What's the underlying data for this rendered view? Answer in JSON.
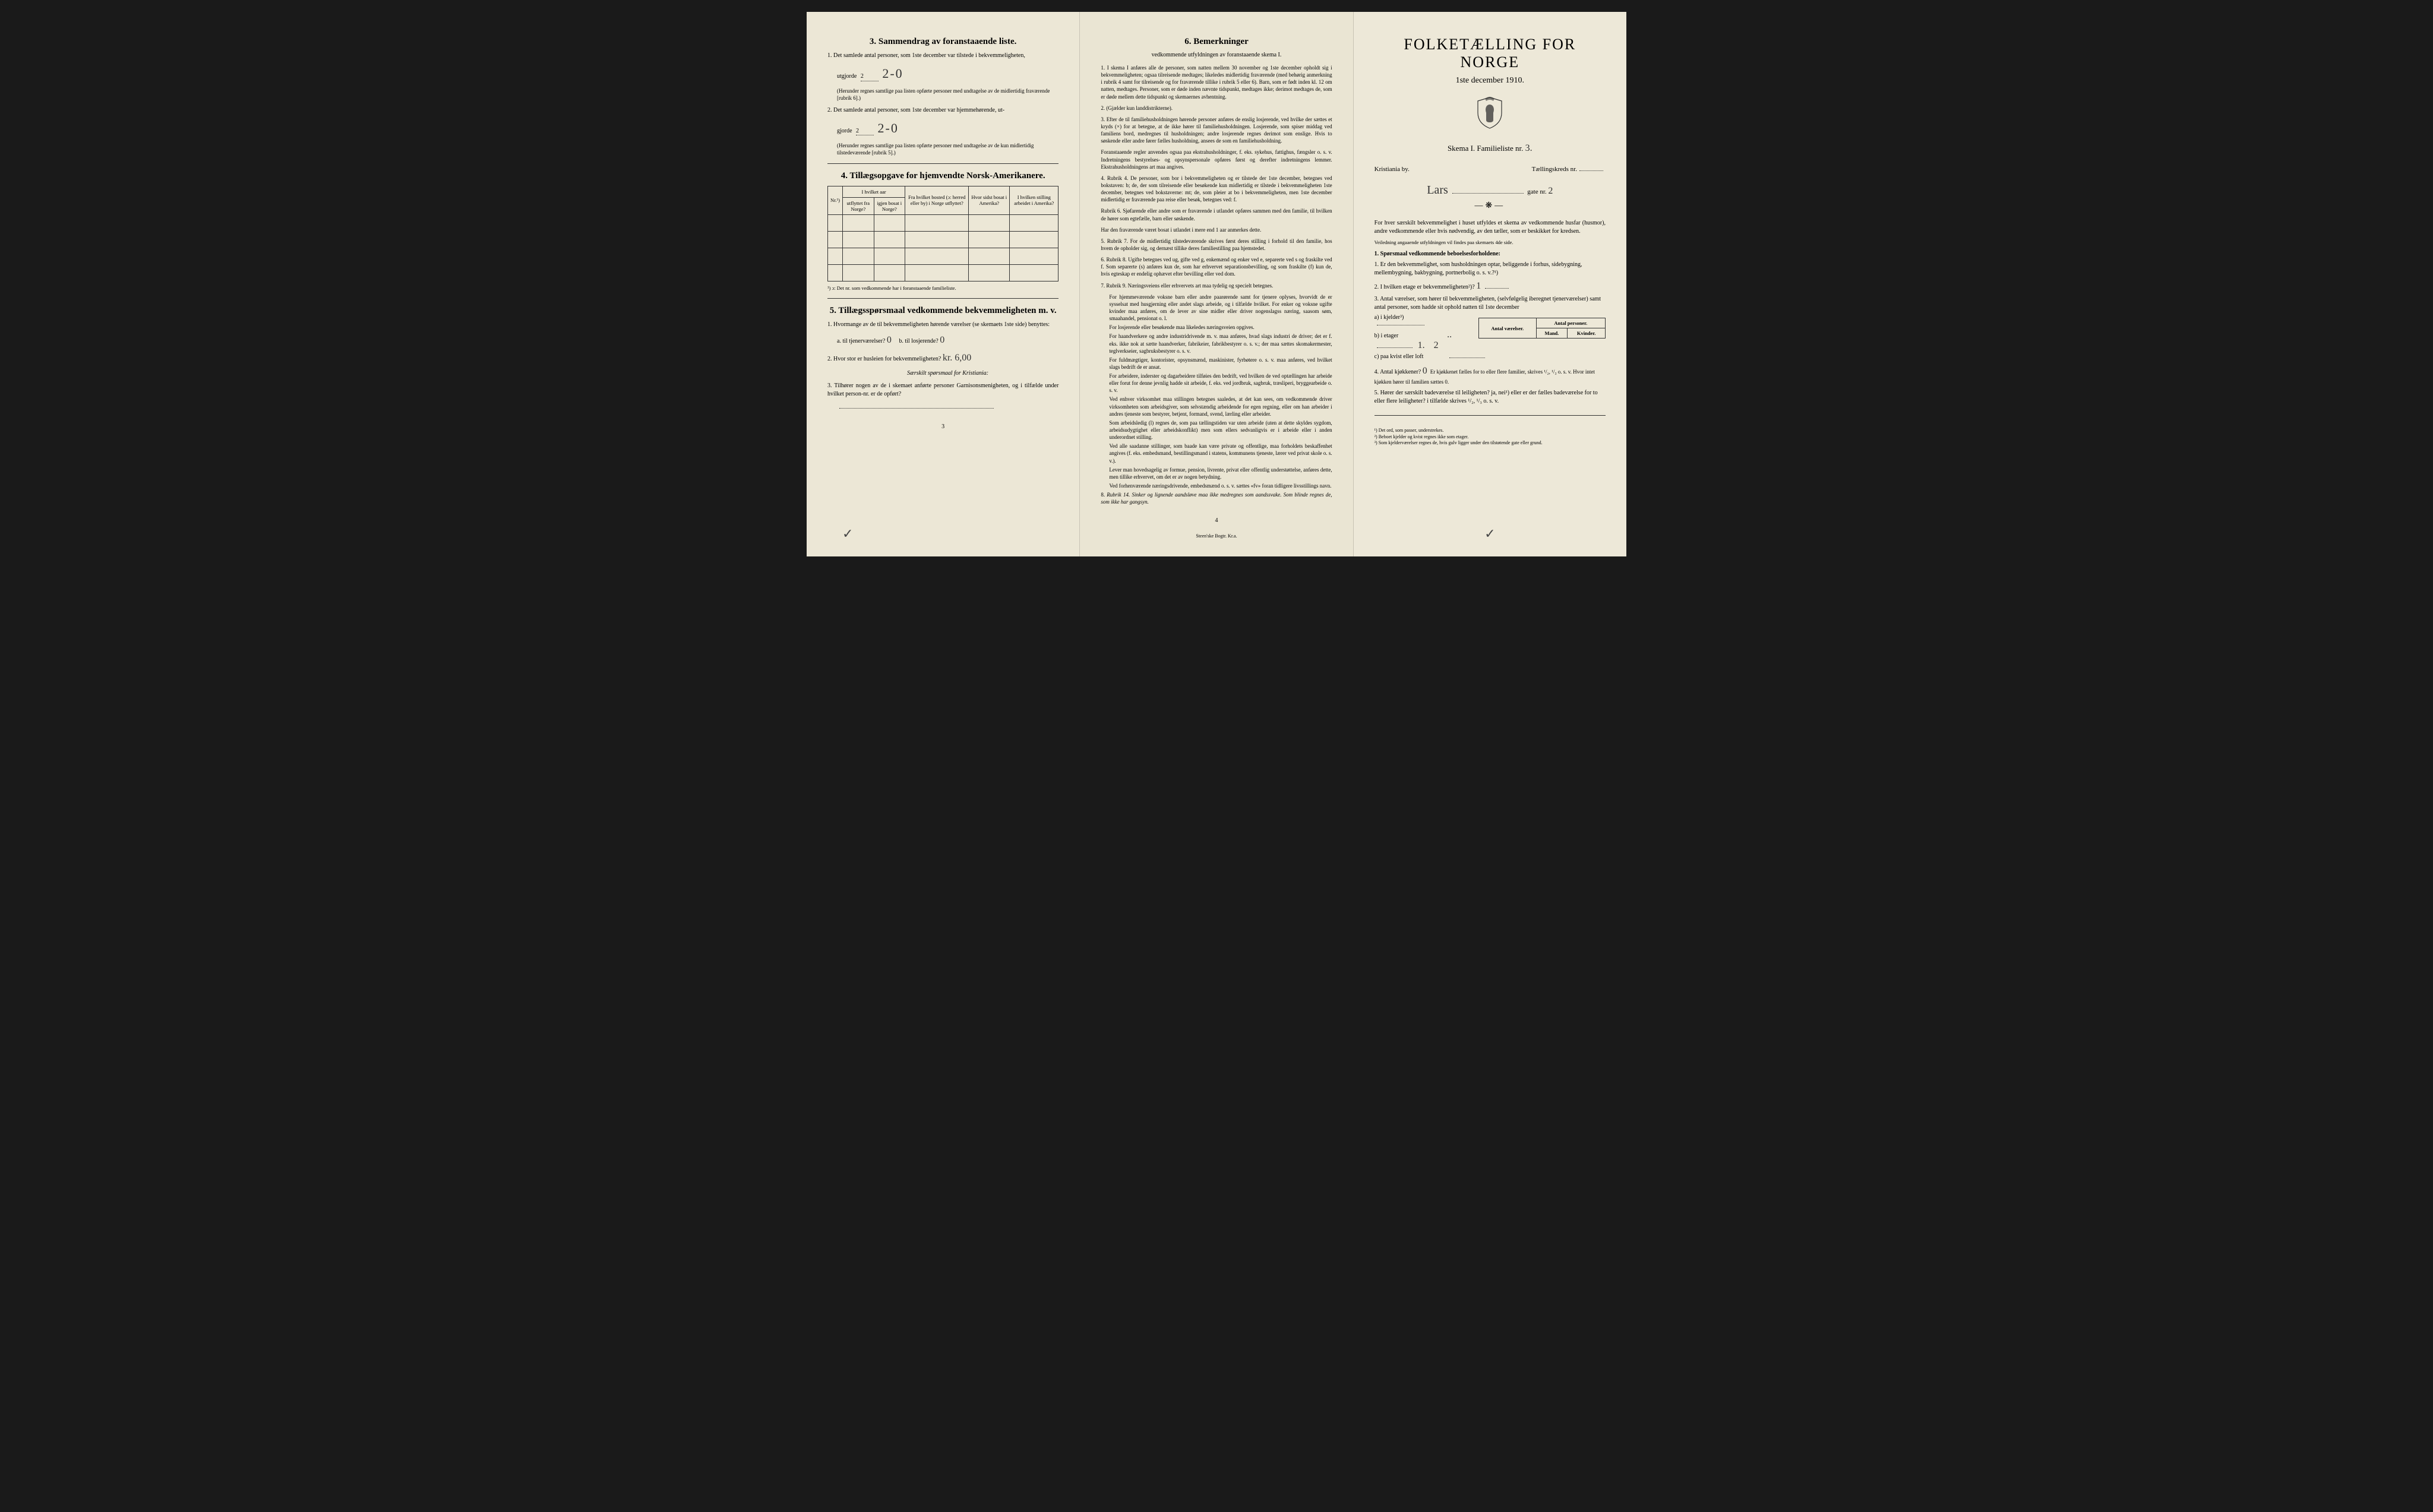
{
  "left": {
    "section3": {
      "title": "3.  Sammendrag av foranstaaende liste.",
      "item1": "1. Det samlede antal personer, som 1ste december var tilstede i bekvemmeligheten,",
      "item1_line": "utgjorde",
      "item1_val_print": "2",
      "item1_val_hand": "2-0",
      "item1_note": "(Herunder regnes samtlige paa listen opførte personer med undtagelse av de midlertidig fraværende [rubrik 6].)",
      "item2": "2. Det samlede antal personer, som 1ste december var hjemmehørende, ut-",
      "item2_line": "gjorde",
      "item2_val_print": "2",
      "item2_val_hand": "2-0",
      "item2_note": "(Herunder regnes samtlige paa listen opførte personer med undtagelse av de kun midlertidig tilstedeværende [rubrik 5].)"
    },
    "section4": {
      "title": "4.  Tillægsopgave for hjemvendte Norsk-Amerikanere.",
      "table": {
        "headers": {
          "col1": "Nr.¹)",
          "col2_group": "I hvilket aar",
          "col2a": "utflyttet fra Norge?",
          "col2b": "igjen bosat i Norge?",
          "col3": "Fra hvilket bosted (ɔ: herred eller by) i Norge utflyttet?",
          "col4": "Hvor sidst bosat i Amerika?",
          "col5": "I hvilken stilling arbeidet i Amerika?"
        }
      },
      "footnote": "¹) ɔ: Det nr. som vedkommende har i foranstaaende familieliste."
    },
    "section5": {
      "title": "5.  Tillægsspørsmaal vedkommende bekvemmeligheten m. v.",
      "item1": "1. Hvormange av de til bekvemmeligheten hørende værelser (se skemaets 1ste side) benyttes:",
      "item1a_label": "a. til tjenerværelser?",
      "item1a_val": "0",
      "item1b_label": "b. til losjerende?",
      "item1b_val": "0",
      "item2": "2. Hvor stor er husleien for bekvemmeligheten?",
      "item2_val": "kr. 6,00",
      "item2_sub": "Særskilt spørsmaal for Kristiania:",
      "item3": "3. Tilhører nogen av de i skemaet anførte personer Garnisonsmenigheten, og i tilfælde under hvilket person-nr. er de opført?"
    },
    "page_num": "3"
  },
  "middle": {
    "title": "6.  Bemerkninger",
    "subtitle": "vedkommende utfyldningen av foranstaaende skema I.",
    "items": [
      {
        "n": "1.",
        "t": "I skema I anføres alle de personer, som natten mellem 30 november og 1ste december opholdt sig i bekvemmeligheten; ogsaa tilreisende medtages; likeledes midlertidig fraværende (med behørig anmerkning i rubrik 4 samt for tilreisende og for fraværende tillike i rubrik 5 eller 6). Barn, som er født inden kl. 12 om natten, medtages. Personer, som er døde inden nævnte tidspunkt, medtages ikke; derimot medtages de, som er døde mellem dette tidspunkt og skemaernes avhentning."
      },
      {
        "n": "2.",
        "t": "(Gjælder kun landdistrikterne)."
      },
      {
        "n": "3.",
        "t": "Efter de til familiehusholdningen hørende personer anføres de enslig losjerende, ved hvilke der sættes et kryds (×) for at betegne, at de ikke hører til familiehusholdningen. Losjerende, som spiser middag ved familiens bord, medregnes til husholdningen; andre losjerende regnes derimot som enslige. Hvis to søskende eller andre fører fælles husholdning, ansees de som en familiehusholdning."
      },
      {
        "n": "",
        "t": "Foranstaaende regler anvendes ogsaa paa ekstrahusholdninger, f. eks. sykehus, fattighus, fængsler o. s. v. Indretningens bestyrelses- og opsynspersonale opføres først og derefter indretningens lemmer. Ekstrahusholdningens art maa angives."
      },
      {
        "n": "4.",
        "t": "Rubrik 4. De personer, som bor i bekvemmeligheten og er tilstede der 1ste december, betegnes ved bokstaven: b; de, der som tilreisende eller besøkende kun midlertidig er tilstede i bekvemmeligheten 1ste december, betegnes ved bokstaverne: mt; de, som pleier at bo i bekvemmeligheten, men 1ste december midlertidig er fraværende paa reise eller besøk, betegnes ved: f."
      },
      {
        "n": "",
        "t": "Rubrik 6. Sjøfarende eller andre som er fraværende i utlandet opføres sammen med den familie, til hvilken de hører som egtefælle, barn eller søskende."
      },
      {
        "n": "",
        "t": "Har den fraværende været bosat i utlandet i mere end 1 aar anmerkes dette."
      },
      {
        "n": "5.",
        "t": "Rubrik 7. For de midlertidig tilstedeværende skrives først deres stilling i forhold til den familie, hos hvem de opholder sig, og dernæst tillike deres familiestilling paa hjemstedet."
      },
      {
        "n": "6.",
        "t": "Rubrik 8. Ugifte betegnes ved ug, gifte ved g, enkemænd og enker ved e, separerte ved s og fraskilte ved f. Som separerte (s) anføres kun de, som har erhvervet separationsbevilling, og som fraskilte (f) kun de, hvis egteskap er endelig ophævet efter bevilling eller ved dom."
      },
      {
        "n": "7.",
        "t": "Rubrik 9. Næringsveiens eller erhvervets art maa tydelig og specielt betegnes."
      }
    ],
    "subs": [
      "For hjemmeværende voksne barn eller andre paarørende samt for tjenere oplyses, hvorvidt de er sysselsat med husgjerning eller andet slags arbeide, og i tilfælde hvilket. For enker og voksne ugifte kvinder maa anføres, om de lever av sine midler eller driver nogenslagss næring, saasom søm, smaahandel, pensionat o. l.",
      "For losjerende eller besøkende maa likeledes næringsveien opgives.",
      "For haandverkere og andre industridrivende m. v. maa anføres, hvad slags industri de driver; det er f. eks. ikke nok at sætte haandverker, fabrikeier, fabrikbestyrer o. s. v.; der maa sættes skomakermester, teglverkseier, sagbruksbestyrer o. s. v.",
      "For fuldmægtiger, kontorister, opsynsmænd, maskinister, fyrbøtere o. s. v. maa anføres, ved hvilket slags bedrift de er ansat.",
      "For arbeidere, inderster og dagarbeidere tilføies den bedrift, ved hvilken de ved optællingen har arbeide eller forut for denne jevnlig hadde sit arbeide, f. eks. ved jordbruk, sagbruk, træsliperi, bryggearbeide o. s. v.",
      "Ved enhver virksomhet maa stillingen betegnes saaledes, at det kan sees, om vedkommende driver virksomheten som arbeidsgiver, som selvstændig arbeidende for egen regning, eller om han arbeider i andres tjeneste som bestyrer, betjent, formand, svend, lærling eller arbeider.",
      "Som arbeidsledig (l) regnes de, som paa tællingstiden var uten arbeide (uten at dette skyldes sygdom, arbeidsudygtighet eller arbeidskonflikt) men som ellers sedvanligvis er i arbeide eller i anden underordnet stilling.",
      "Ved alle saadanne stillinger, som baade kan være private og offentlige, maa forholdets beskaffenhet angives (f. eks. embedsmand, bestillingsmand i statens, kommunens tjeneste, lærer ved privat skole o. s. v.).",
      "Lever man hovedsagelig av formue, pension, livrente, privat eller offentlig understøttelse, anføres dette, men tillike erhvervet, om det er av nogen betydning.",
      "Ved forhenværende næringsdrivende, embedsmænd o. s. v. sættes «fv» foran tidligere livsstillings navn."
    ],
    "item8": "Rubrik 14. Sinker og lignende aandsløve maa ikke medregnes som aandssvake. Som blinde regnes de, som ikke har gangsyn.",
    "page_num": "4",
    "printer": "Steen'ske Bogtr.  Kr.a."
  },
  "right": {
    "main_title": "FOLKETÆLLING FOR NORGE",
    "date": "1ste december 1910.",
    "skema": "Skema I.   Familieliste nr.",
    "skema_nr": "3.",
    "by_label": "Kristiania by.",
    "kreds_label": "Tællingskreds nr.",
    "gate_name": "Lars",
    "gate_suffix": "gate nr.",
    "gate_nr": "2",
    "intro1": "For hver særskilt bekvemmelighet i huset utfyldes et skema av vedkommende husfar (husmor), andre vedkommende eller hvis nødvendig, av den tæller, som er beskikket for kredsen.",
    "intro2": "Veiledning angaaende utfyldningen vil findes paa skemaets 4de side.",
    "q1_title": "1. Spørsmaal vedkommende beboelsesforholdene:",
    "q1_1": "1. Er den bekvemmelighet, som husholdningen optar, beliggende i forhus, sidebygning, mellembygning, bakbygning, portnerbolig o. s. v.?¹)",
    "q1_2": "2. I hvilken etage er bekvemmeligheten²)?",
    "q1_2_val": "1",
    "q1_3": "3. Antal værelser, som hører til bekvemmeligheten, (selvfølgelig iberegnet tjenerværelser) samt antal personer, som hadde sit ophold natten til 1ste december",
    "antal_table": {
      "h1": "Antal værelser.",
      "h2": "Antal personer.",
      "h2a": "Mand.",
      "h2b": "Kvinder.",
      "rows": [
        {
          "label": "a) i kjelder³)",
          "v": "",
          "m": "",
          "k": ""
        },
        {
          "label": "b) i etager",
          "hand": "..",
          "v": "1.",
          "m": "",
          "k": "2"
        },
        {
          "label": "c) paa kvist eller loft",
          "v": "",
          "m": "",
          "k": ""
        }
      ]
    },
    "q1_4": "4. Antal kjøkkener?",
    "q1_4_val": "0",
    "q1_4_rest": "Er kjøkkenet fælles for to eller flere familier, skrives ¹/₂, ¹/₃ o. s. v. Hvor intet kjøkken hører til familien sættes 0.",
    "q1_5": "5. Hører der særskilt badeværelse til leiligheten? ja, nei¹) eller er der fælles badeværelse for to eller flere leiligheter? i tilfælde skrives ¹/₂, ¹/₃ o. s. v.",
    "footnotes": [
      "¹) Det ord, som passer, understrekes.",
      "²) Beboet kjelder og kvist regnes ikke som etager.",
      "³) Som kjelderværelser regnes de, hvis gulv ligger under den tilstøtende gate eller grund."
    ]
  }
}
